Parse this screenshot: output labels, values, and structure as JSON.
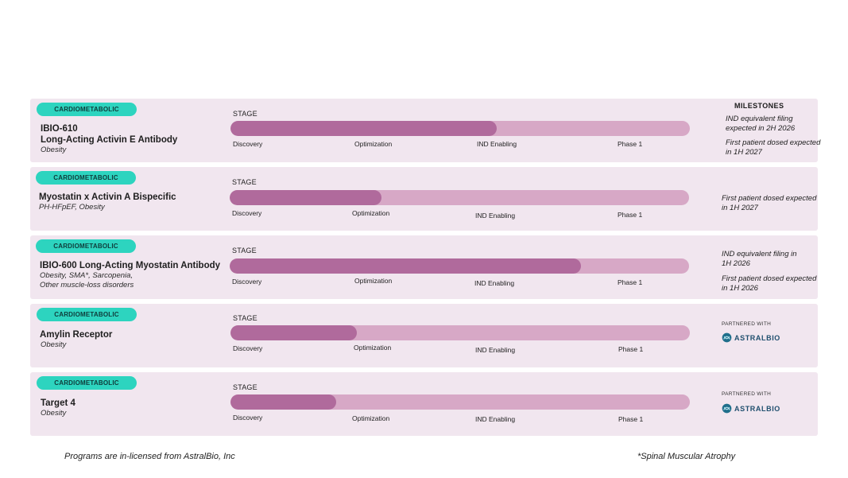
{
  "milestones_header": "MILESTONES",
  "stage_label": "STAGE",
  "phases": [
    "Discovery",
    "Optimization",
    "IND Enabling",
    "Phase 1"
  ],
  "programs": [
    {
      "badge": "CARDIOMETABOLIC",
      "name": "IBIO-610",
      "name2": "Long-Acting Activin E Antibody",
      "indication": "Obesity",
      "indication2": "",
      "progress": 0.58,
      "milestones": [
        "IND equivalent filing expected in 2H 2026",
        "First patient dosed expected in 1H 2027"
      ]
    },
    {
      "badge": "CARDIOMETABOLIC",
      "name": "Myostatin x Activin A Bispecific",
      "indication": "PH-HFpEF, Obesity",
      "progress": 0.33,
      "milestones": [
        "First patient dosed expected in 1H 2027"
      ]
    },
    {
      "badge": "CARDIOMETABOLIC",
      "name": "IBIO-600 Long-Acting Myostatin Antibody",
      "indication": "Obesity, SMA*, Sarcopenia,",
      "indication2": "Other muscle-loss disorders",
      "progress": 0.765,
      "milestones": [
        "IND equivalent filing in 1H 2026",
        "First patient dosed expected in 1H 2026"
      ]
    },
    {
      "badge": "CARDIOMETABOLIC",
      "name": "Amylin Receptor",
      "indication": "Obesity",
      "progress": 0.275,
      "partner_label": "PARTNERED WITH",
      "partner_name": "ASTRALBIO"
    },
    {
      "badge": "CARDIOMETABOLIC",
      "name": "Target 4",
      "indication": "Obesity",
      "progress": 0.23,
      "partner_label": "PARTNERED WITH",
      "partner_name": "ASTRALBIO"
    }
  ],
  "footer_left": "Programs are in-licensed from AstralBio, Inc",
  "footer_right": "*Spinal Muscular Atrophy",
  "colors": {
    "badge": "#2dd4bf",
    "track": "#d7a8c6",
    "fill": "#b06a9c",
    "row_bg": "#f1e6ef"
  }
}
